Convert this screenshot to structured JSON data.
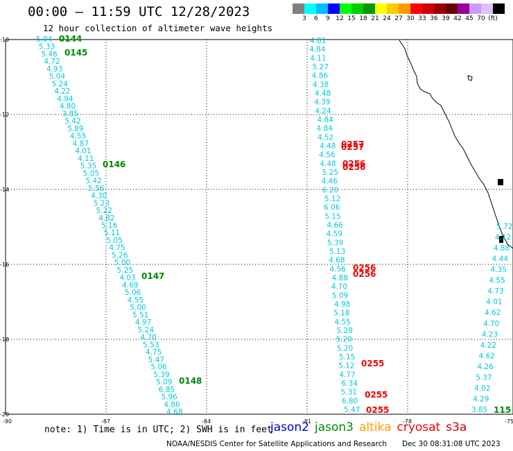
{
  "header": {
    "title": "00:00 – 11:59 UTC 12/28/2023",
    "subtitle": "12 hour collection of altimeter wave heights"
  },
  "colorbar": {
    "colors": [
      "#808080",
      "#00ffff",
      "#00bfff",
      "#0000ff",
      "#00ff00",
      "#00cc00",
      "#009900",
      "#ffff00",
      "#ffcc00",
      "#ff9900",
      "#ff0000",
      "#cc0000",
      "#990000",
      "#660000",
      "#990099",
      "#cc99ff",
      "#e0c0ff",
      "#000000"
    ],
    "labels": [
      "3",
      "6",
      "9",
      "12",
      "15",
      "18",
      "21",
      "24",
      "27",
      "30",
      "33",
      "36",
      "39",
      "42",
      "45",
      "70",
      "(ft)"
    ]
  },
  "axes": {
    "lat_labels": [
      "-10",
      "-12",
      "-14",
      "-16",
      "-18",
      "-20"
    ],
    "lon_labels": [
      "-90",
      "-87",
      "-84",
      "-81",
      "-78",
      "-75"
    ]
  },
  "tracks": {
    "track1_values": [
      "5.04",
      "5.33",
      "5.46",
      "4.72",
      "4.93",
      "5.04",
      "5.24",
      "4.22",
      "4.94",
      "4.80",
      "3.85",
      "5.42",
      "5.89",
      "4.55",
      "4.87",
      "4.01",
      "4.11",
      "5.35",
      "5.05",
      "5.42",
      "5.56",
      "4.30",
      "5.23",
      "5.22",
      "4.82",
      "5.16",
      "5.11",
      "5.05",
      "4.75",
      "5.26",
      "5.00",
      "5.25",
      "4.03",
      "4.69",
      "5.06",
      "4.55",
      "5.00",
      "5.51",
      "4.97",
      "5.24",
      "4.70",
      "5.53",
      "4.75",
      "5.47",
      "5.06",
      "5.39",
      "5.09",
      "6.85",
      "5.96",
      "4.86",
      "4.68"
    ],
    "track1_times": [
      "0144",
      "0145",
      "0146",
      "0147",
      "0148"
    ],
    "track2_values": [
      "4.81",
      "4.84",
      "4.11",
      "5.27",
      "4.86",
      "4.38",
      "4.48",
      "4.39",
      "4.24",
      "4.84",
      "4.84",
      "4.52",
      "4.48",
      "4.56",
      "4.48",
      "5.25",
      "4.46",
      "6.20",
      "5.12",
      "6.06",
      "5.15",
      "4.66",
      "4.59",
      "5.39",
      "5.13",
      "4.68",
      "4.56",
      "4.88",
      "4.70",
      "5.09",
      "4.98",
      "5.18",
      "4.55",
      "5.28",
      "5.20",
      "5.20",
      "5.15",
      "5.12",
      "4.77",
      "6.34",
      "5.31",
      "6.80",
      "5.47"
    ],
    "track2_times": [
      "0257",
      "0257",
      "0256",
      "0256",
      "0256",
      "0256",
      "0255",
      "0255",
      "0255"
    ],
    "track3_values": [
      "5.72",
      "4.12",
      "4.88",
      "4.44",
      "4.35",
      "4.55",
      "4.73",
      "4.01",
      "4.62",
      "4.70",
      "4.23",
      "4.22",
      "4.62",
      "4.26",
      "5.37",
      "4.02",
      "4.29",
      "3.85"
    ],
    "track3_time": "115"
  },
  "footer": {
    "note": "note: 1) Time is in UTC; 2) SWH is in feet",
    "legend": [
      {
        "label": "jason2",
        "color": "#0000cc"
      },
      {
        "label": "jason3",
        "color": "#008800"
      },
      {
        "label": "altika",
        "color": "#ff9900"
      },
      {
        "label": "cryosat",
        "color": "#ee0000"
      },
      {
        "label": "s3a",
        "color": "#cc0000"
      }
    ],
    "credit": "NOAA/NESDIS Center for Satellite Applications and Research",
    "date": "Dec 30 08:31:08 UTC 2023"
  }
}
